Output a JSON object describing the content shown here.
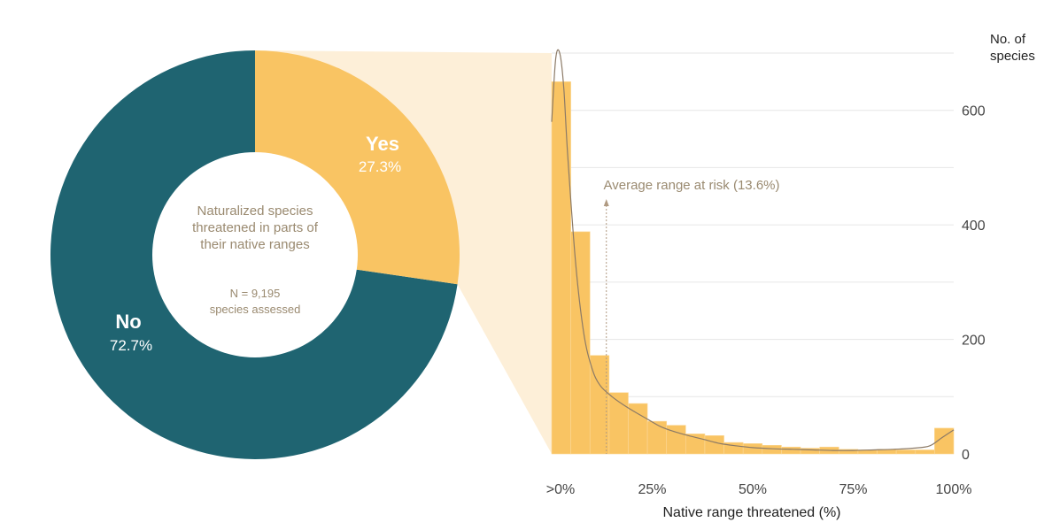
{
  "colors": {
    "no": "#1f6471",
    "yes": "#f9c463",
    "wedge": "#fdefd8",
    "grid": "#e6e6e6",
    "text": "#9a8a70",
    "axis_text": "#444444",
    "curve": "#8c7a66"
  },
  "chart_data": [
    {
      "type": "pie",
      "donut": true,
      "center_text": {
        "line1": "Naturalized species",
        "line2": "threatened in parts of",
        "line3": "their native ranges",
        "n_line1": "N = 9,195",
        "n_line2": "species assessed"
      },
      "slices": [
        {
          "label": "Yes",
          "pct_text": "27.3%",
          "value": 27.3
        },
        {
          "label": "No",
          "pct_text": "72.7%",
          "value": 72.7
        }
      ]
    },
    {
      "type": "bar",
      "subtype": "histogram",
      "xlabel": "Native range threatened (%)",
      "ylabel_line1": "No. of",
      "ylabel_line2": "species",
      "xlim": [
        0,
        100
      ],
      "ylim": [
        0,
        700
      ],
      "xticks": [
        {
          "value": 0,
          "label": ">0%"
        },
        {
          "value": 25,
          "label": "25%"
        },
        {
          "value": 50,
          "label": "50%"
        },
        {
          "value": 75,
          "label": "75%"
        },
        {
          "value": 100,
          "label": "100%"
        }
      ],
      "yticks": [
        0,
        200,
        400,
        600
      ],
      "bin_width": 5,
      "values": [
        650,
        388,
        172,
        107,
        88,
        57,
        50,
        35,
        32,
        20,
        18,
        15,
        12,
        10,
        12,
        8,
        7,
        8,
        7,
        7,
        45
      ],
      "density_curve": [
        [
          0,
          580
        ],
        [
          1,
          690
        ],
        [
          2,
          700
        ],
        [
          3,
          640
        ],
        [
          4,
          520
        ],
        [
          6,
          330
        ],
        [
          8,
          210
        ],
        [
          10,
          150
        ],
        [
          12,
          120
        ],
        [
          15,
          100
        ],
        [
          18,
          85
        ],
        [
          21,
          72
        ],
        [
          24,
          60
        ],
        [
          27,
          48
        ],
        [
          30,
          40
        ],
        [
          34,
          32
        ],
        [
          38,
          25
        ],
        [
          42,
          18
        ],
        [
          46,
          14
        ],
        [
          50,
          11
        ],
        [
          55,
          9
        ],
        [
          60,
          8
        ],
        [
          65,
          7
        ],
        [
          70,
          6
        ],
        [
          75,
          6
        ],
        [
          80,
          7
        ],
        [
          85,
          8
        ],
        [
          90,
          10
        ],
        [
          94,
          14
        ],
        [
          97,
          28
        ],
        [
          100,
          42
        ]
      ],
      "annotation": {
        "text": "Average range at risk (13.6%)",
        "x": 13.6
      }
    }
  ]
}
